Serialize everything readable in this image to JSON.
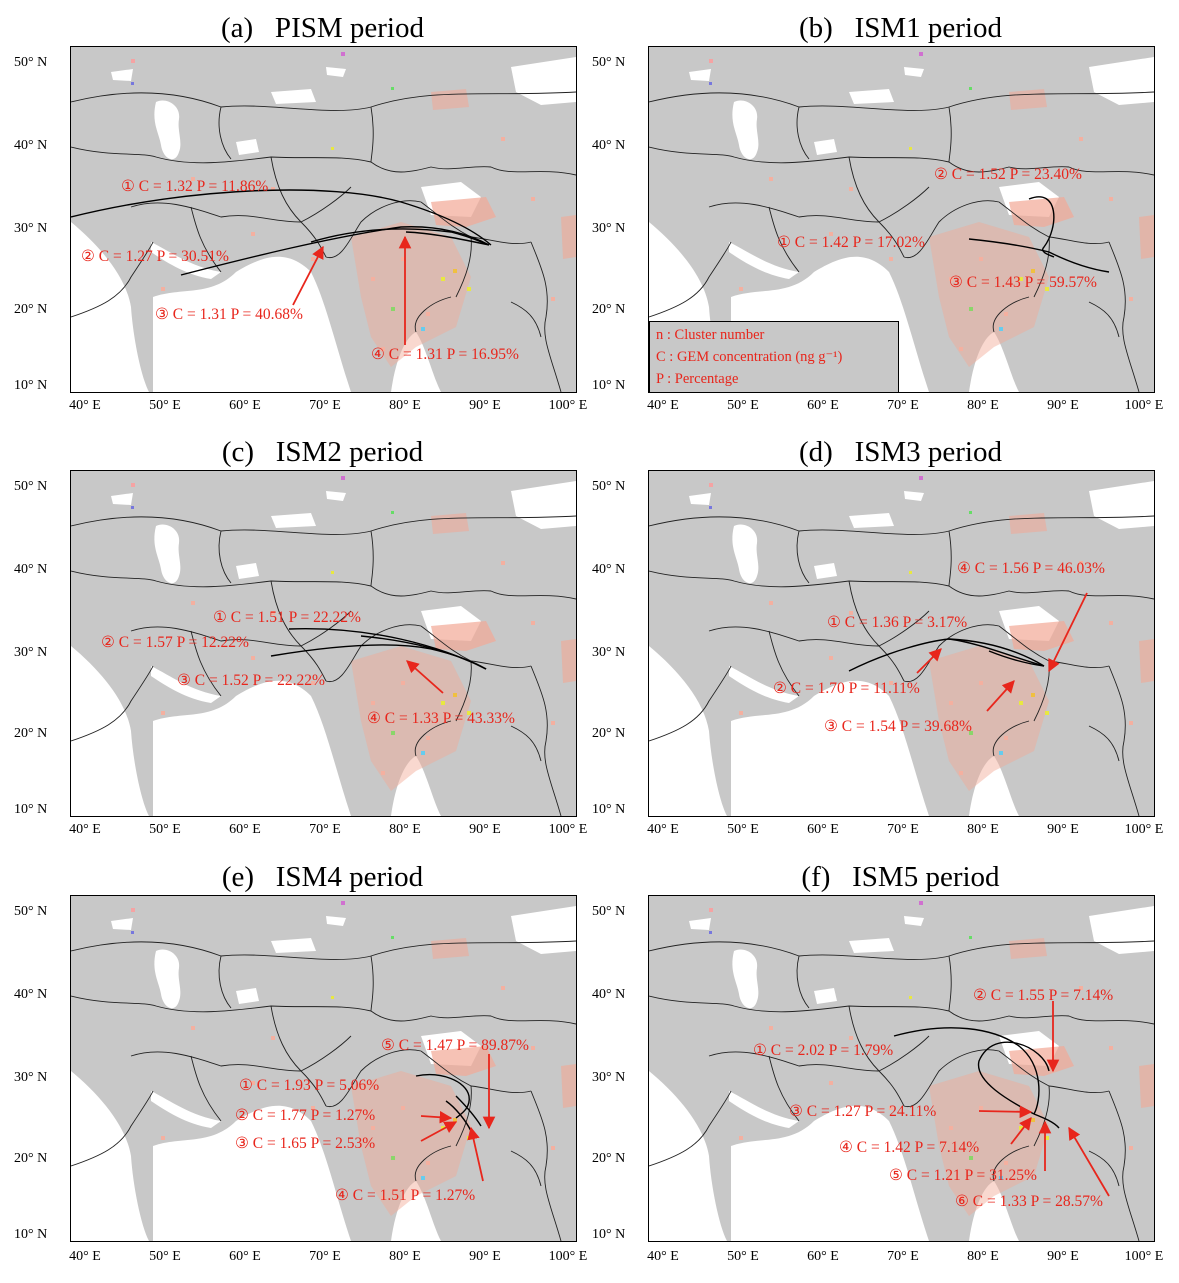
{
  "axes": {
    "lat_labels": [
      "50° N",
      "40° N",
      "30° N",
      "20° N",
      "10° N"
    ],
    "lon_labels": [
      "40° E",
      "50° E",
      "60° E",
      "70° E",
      "80° E",
      "90° E",
      "100° E"
    ]
  },
  "legend": {
    "lines": [
      "n : Cluster number",
      "C : GEM concentration (ng g⁻¹)",
      "P : Percentage"
    ]
  },
  "colors": {
    "land": "#c8c8c8",
    "water": "#ffffff",
    "concentration": "#f2a895",
    "annotation": "#e8261c",
    "trajectory": "#000000"
  },
  "panels": [
    {
      "title": "(a)   PISM period",
      "clusters": [
        {
          "label": "① C = 1.32  P = 11.86%"
        },
        {
          "label": "② C = 1.27  P = 30.51%"
        },
        {
          "label": "③ C = 1.31  P = 40.68%"
        },
        {
          "label": "④ C = 1.31  P = 16.95%"
        }
      ]
    },
    {
      "title": "(b)   ISM1 period",
      "clusters": [
        {
          "label": "② C = 1.52  P = 23.40%"
        },
        {
          "label": "① C = 1.42  P = 17.02%"
        },
        {
          "label": "③ C = 1.43  P = 59.57%"
        }
      ]
    },
    {
      "title": "(c)   ISM2 period",
      "clusters": [
        {
          "label": "① C = 1.51  P = 22.22%"
        },
        {
          "label": "② C = 1.57  P = 12.22%"
        },
        {
          "label": "③ C = 1.52  P = 22.22%"
        },
        {
          "label": "④ C = 1.33  P = 43.33%"
        }
      ]
    },
    {
      "title": "(d)   ISM3 period",
      "clusters": [
        {
          "label": "④ C = 1.56   P = 46.03%"
        },
        {
          "label": "① C = 1.36   P =  3.17%"
        },
        {
          "label": "② C = 1.70   P = 11.11%"
        },
        {
          "label": "③ C = 1.54   P = 39.68%"
        }
      ]
    },
    {
      "title": "(e)   ISM4 period",
      "clusters": [
        {
          "label": "⑤ C = 1.47   P = 89.87%"
        },
        {
          "label": "① C = 1.93   P =  5.06%"
        },
        {
          "label": "② C = 1.77   P =  1.27%"
        },
        {
          "label": "③ C = 1.65   P =  2.53%"
        },
        {
          "label": "④ C = 1.51   P =  1.27%"
        }
      ]
    },
    {
      "title": "(f)   ISM5 period",
      "clusters": [
        {
          "label": "② C = 1.55   P =  7.14%"
        },
        {
          "label": "① C = 2.02   P =  1.79%"
        },
        {
          "label": "③ C = 1.27   P = 24.11%"
        },
        {
          "label": "④ C = 1.42   P =  7.14%"
        },
        {
          "label": "⑤ C = 1.21   P = 31.25%"
        },
        {
          "label": "⑥ C = 1.33   P = 28.57%"
        }
      ]
    }
  ]
}
